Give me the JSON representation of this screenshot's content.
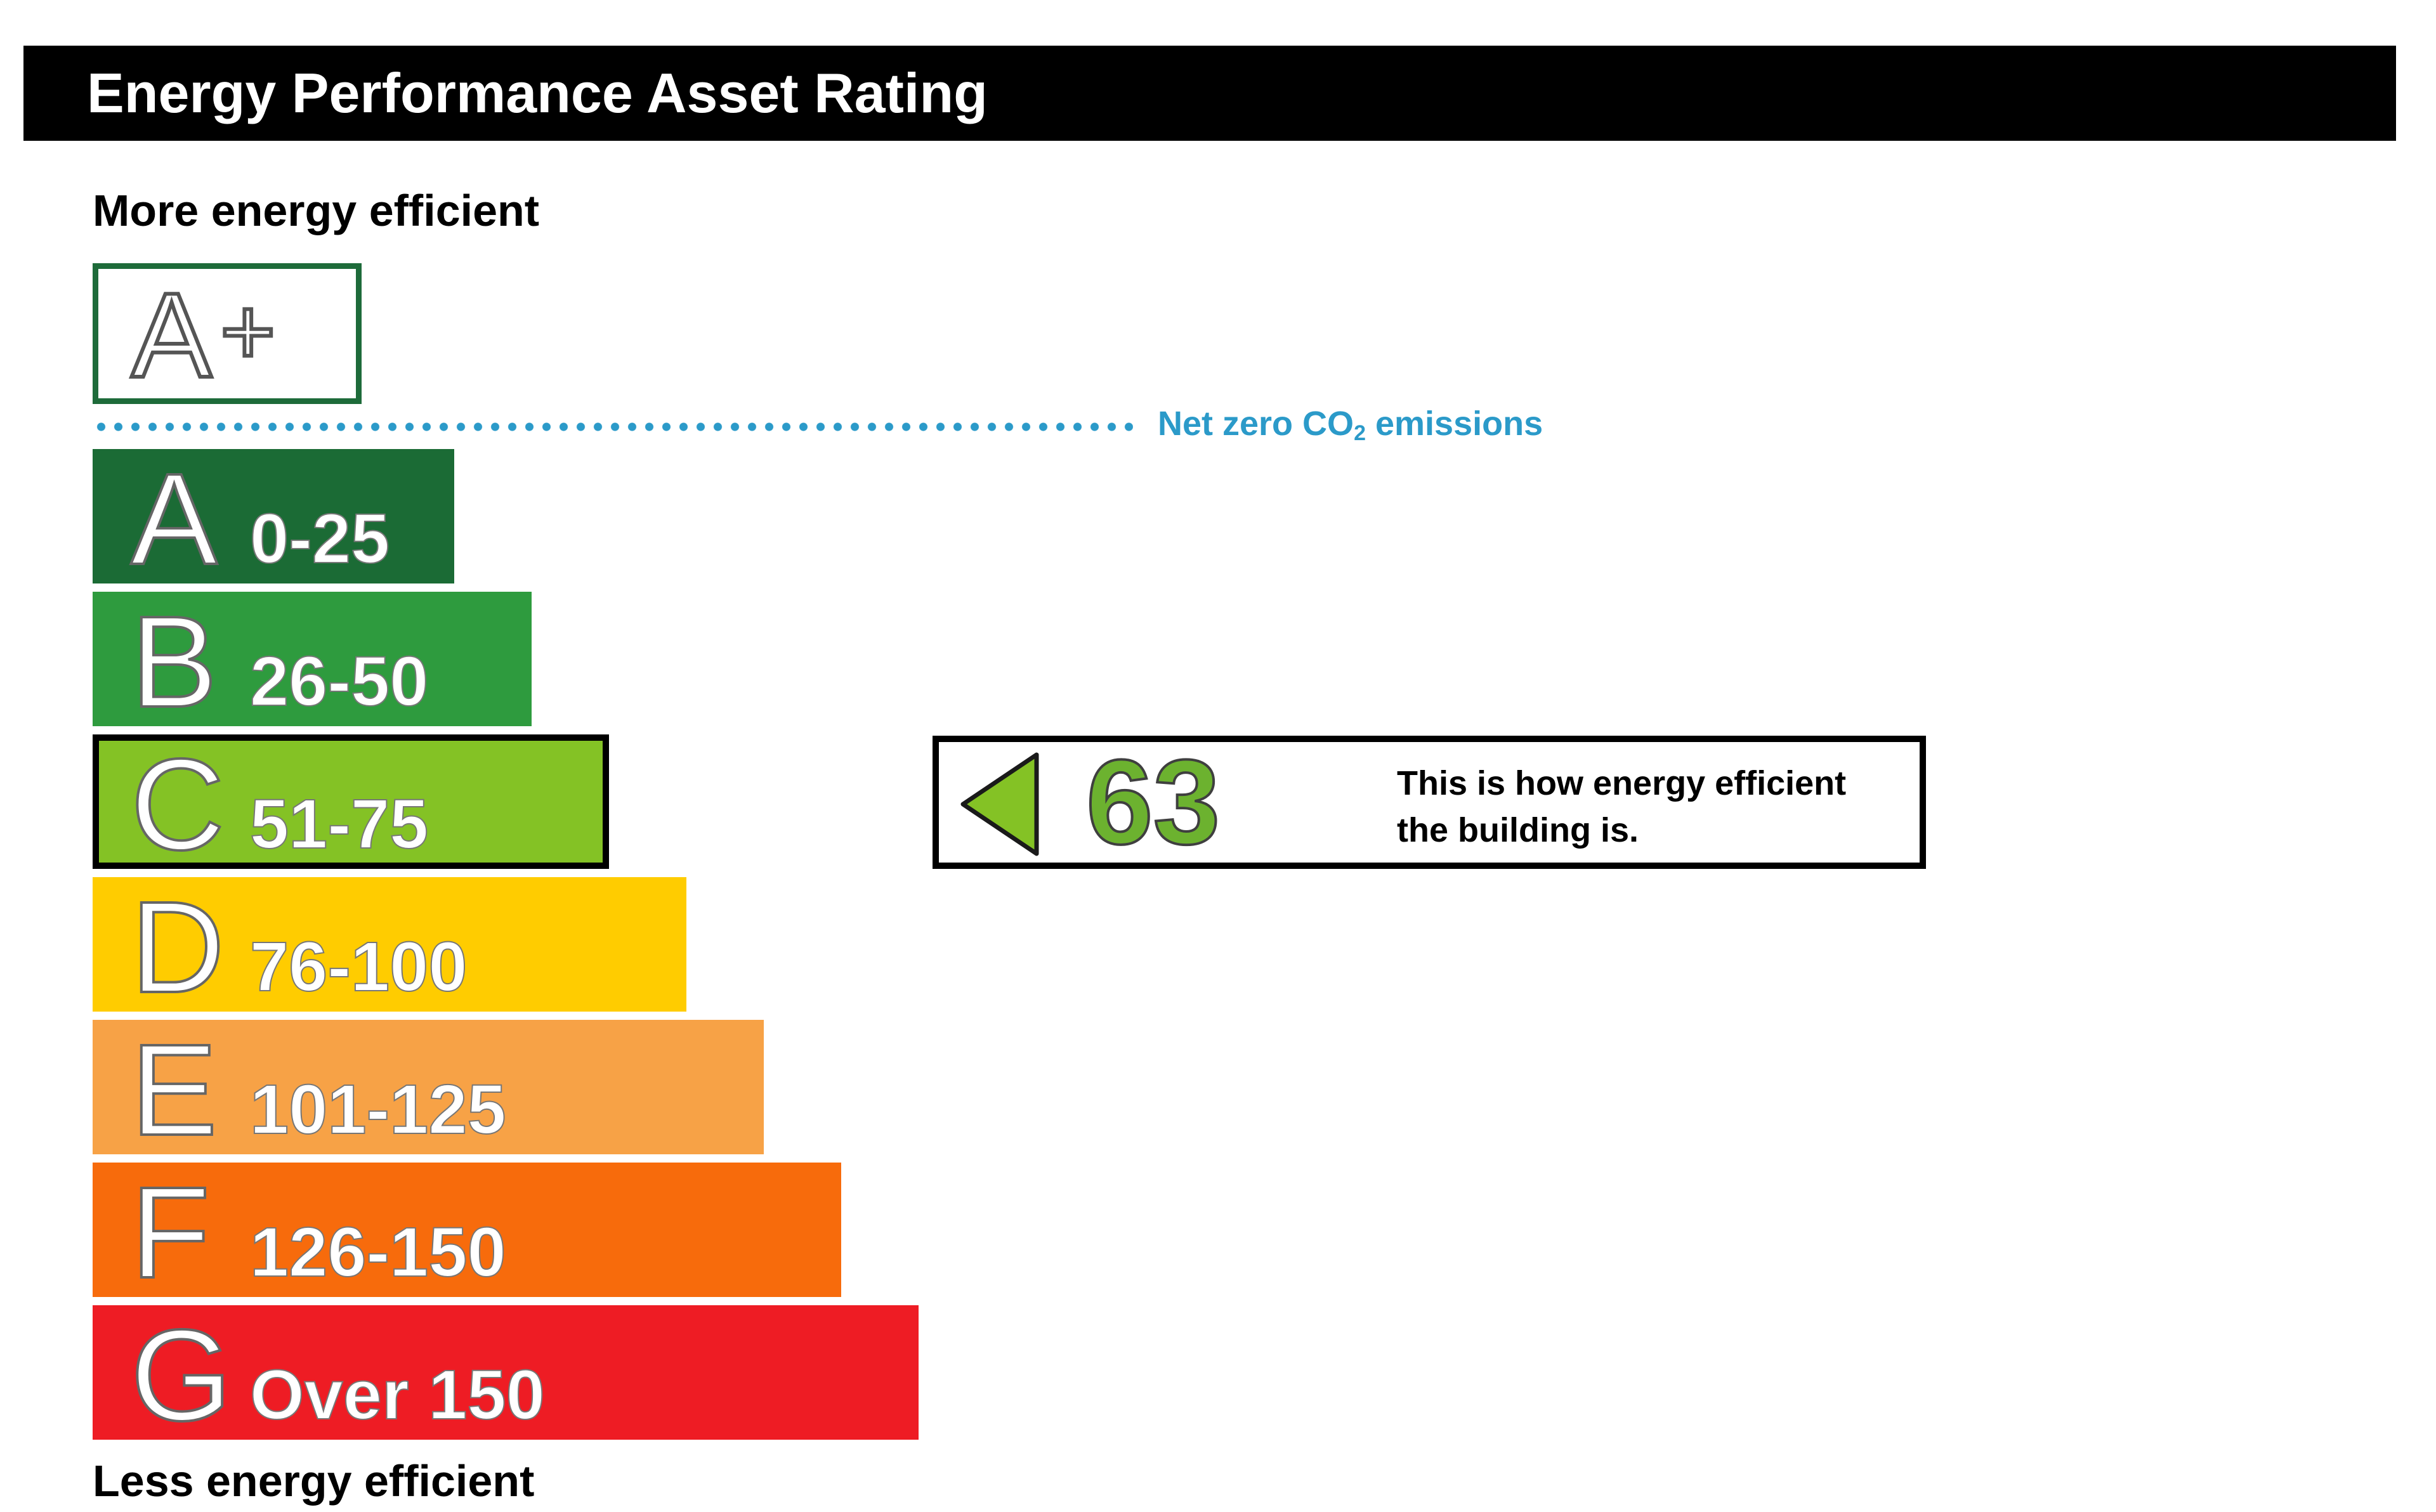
{
  "title": "Energy Performance Asset Rating",
  "more_efficient_label": "More energy efficient",
  "less_efficient_label": "Less energy efficient",
  "top_rating": {
    "letter": "A",
    "modifier": "+"
  },
  "net_zero": {
    "label_prefix": "Net zero CO",
    "label_subscript": "2",
    "label_suffix": " emissions",
    "color": "#2b9ac9"
  },
  "chart_data": {
    "type": "bar",
    "categories": [
      "A",
      "B",
      "C",
      "D",
      "E",
      "F",
      "G"
    ],
    "ranges": [
      "0-25",
      "26-50",
      "51-75",
      "76-100",
      "101-125",
      "126-150",
      "Over 150"
    ],
    "colors": [
      "#1b6b35",
      "#2e9b3e",
      "#84c225",
      "#ffcc00",
      "#f7a246",
      "#f76b0c",
      "#ee1c24"
    ],
    "selected_band": "C",
    "current_rating": 63
  },
  "indicator": {
    "value": "63",
    "description_line1": "This is how energy efficient",
    "description_line2": "the building is."
  }
}
